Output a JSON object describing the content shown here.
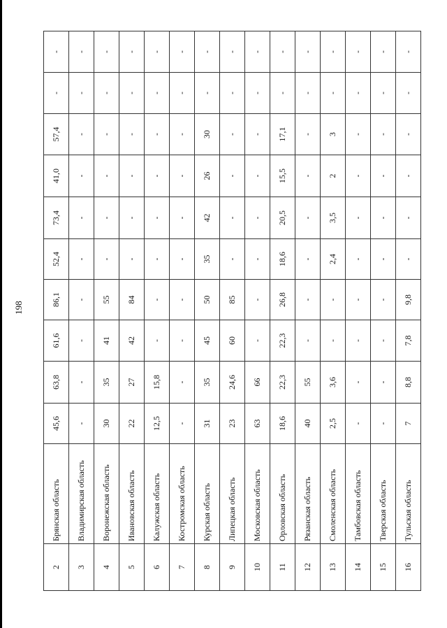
{
  "page_number": "198",
  "rows": [
    {
      "num": "2",
      "name": "Брянская область",
      "values": [
        "45,6",
        "63,8",
        "61,6",
        "86,1",
        "52,4",
        "73,4",
        "41,0",
        "57,4",
        "-",
        "-"
      ]
    },
    {
      "num": "3",
      "name": "Владимирская область",
      "values": [
        "-",
        "-",
        "-",
        "-",
        "-",
        "-",
        "-",
        "-",
        "-",
        "-"
      ]
    },
    {
      "num": "4",
      "name": "Воронежская область",
      "values": [
        "30",
        "35",
        "41",
        "55",
        "-",
        "-",
        "-",
        "-",
        "-",
        "-"
      ]
    },
    {
      "num": "5",
      "name": "Ивановская область",
      "values": [
        "22",
        "27",
        "42",
        "84",
        "-",
        "-",
        "-",
        "-",
        "-",
        "-"
      ]
    },
    {
      "num": "6",
      "name": "Калужская область",
      "values": [
        "12,5",
        "15,8",
        "-",
        "-",
        "-",
        "-",
        "-",
        "-",
        "-",
        "-"
      ]
    },
    {
      "num": "7",
      "name": "Костромская область",
      "values": [
        "-",
        "-",
        "-",
        "-",
        "-",
        "-",
        "-",
        "-",
        "-",
        "-"
      ]
    },
    {
      "num": "8",
      "name": "Курская область",
      "values": [
        "31",
        "35",
        "45",
        "50",
        "35",
        "42",
        "26",
        "30",
        "-",
        "-"
      ]
    },
    {
      "num": "9",
      "name": "Липецкая область",
      "values": [
        "23",
        "24,6",
        "60",
        "85",
        "-",
        "-",
        "-",
        "-",
        "-",
        "-"
      ]
    },
    {
      "num": "10",
      "name": "Московская область",
      "values": [
        "63",
        "66",
        "-",
        "-",
        "-",
        "-",
        "-",
        "-",
        "-",
        "-"
      ]
    },
    {
      "num": "11",
      "name": "Орловская область",
      "values": [
        "18,6",
        "22,3",
        "22,3",
        "26,8",
        "18,6",
        "20,5",
        "15,5",
        "17,1",
        "-",
        "-"
      ]
    },
    {
      "num": "12",
      "name": "Рязанская область",
      "values": [
        "40",
        "55",
        "-",
        "-",
        "-",
        "-",
        "-",
        "-",
        "-",
        "-"
      ]
    },
    {
      "num": "13",
      "name": "Смоленская область",
      "values": [
        "2,5",
        "3,6",
        "-",
        "-",
        "2,4",
        "3,5",
        "2",
        "3",
        "-",
        "-"
      ]
    },
    {
      "num": "14",
      "name": "Тамбовская область",
      "values": [
        "-",
        "-",
        "-",
        "-",
        "-",
        "-",
        "-",
        "-",
        "-",
        "-"
      ]
    },
    {
      "num": "15",
      "name": "Тверская область",
      "values": [
        "-",
        "-",
        "-",
        "-",
        "-",
        "-",
        "-",
        "-",
        "-",
        "-"
      ]
    },
    {
      "num": "16",
      "name": "Тульская область",
      "values": [
        "7",
        "8,8",
        "7,8",
        "9,8",
        "-",
        "-",
        "-",
        "-",
        "-",
        "-"
      ]
    }
  ]
}
